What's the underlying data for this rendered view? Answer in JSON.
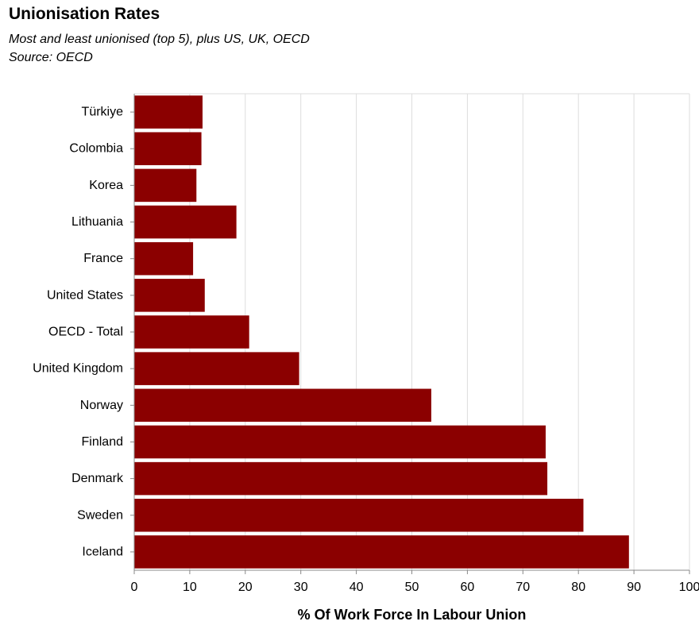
{
  "title": "Unionisation Rates",
  "subtitle_lines": [
    "Most and least unionised (top 5), plus US, UK, OECD",
    "Source: OECD"
  ],
  "colors": {
    "bar": "#8b0000",
    "grid": "#dddddd",
    "axis": "#888888"
  },
  "chart_data": {
    "type": "bar",
    "orientation": "horizontal",
    "title": "Unionisation Rates",
    "subtitle": "Most and least unionised (top 5), plus US, UK, OECD",
    "source": "Source: OECD",
    "xlabel": "% Of Work Force In Labour Union",
    "ylabel": "",
    "xlim": [
      0,
      100
    ],
    "xticks": [
      0,
      10,
      20,
      30,
      40,
      50,
      60,
      70,
      80,
      90,
      100
    ],
    "grid": true,
    "categories": [
      "Türkiye",
      "Colombia",
      "Korea",
      "Lithuania",
      "France",
      "United States",
      "OECD - Total",
      "United Kingdom",
      "Norway",
      "Finland",
      "Denmark",
      "Sweden",
      "Iceland"
    ],
    "values": [
      12.3,
      12.1,
      11.2,
      18.4,
      10.6,
      12.7,
      20.7,
      29.7,
      53.5,
      74.1,
      74.4,
      80.9,
      89.1
    ]
  }
}
